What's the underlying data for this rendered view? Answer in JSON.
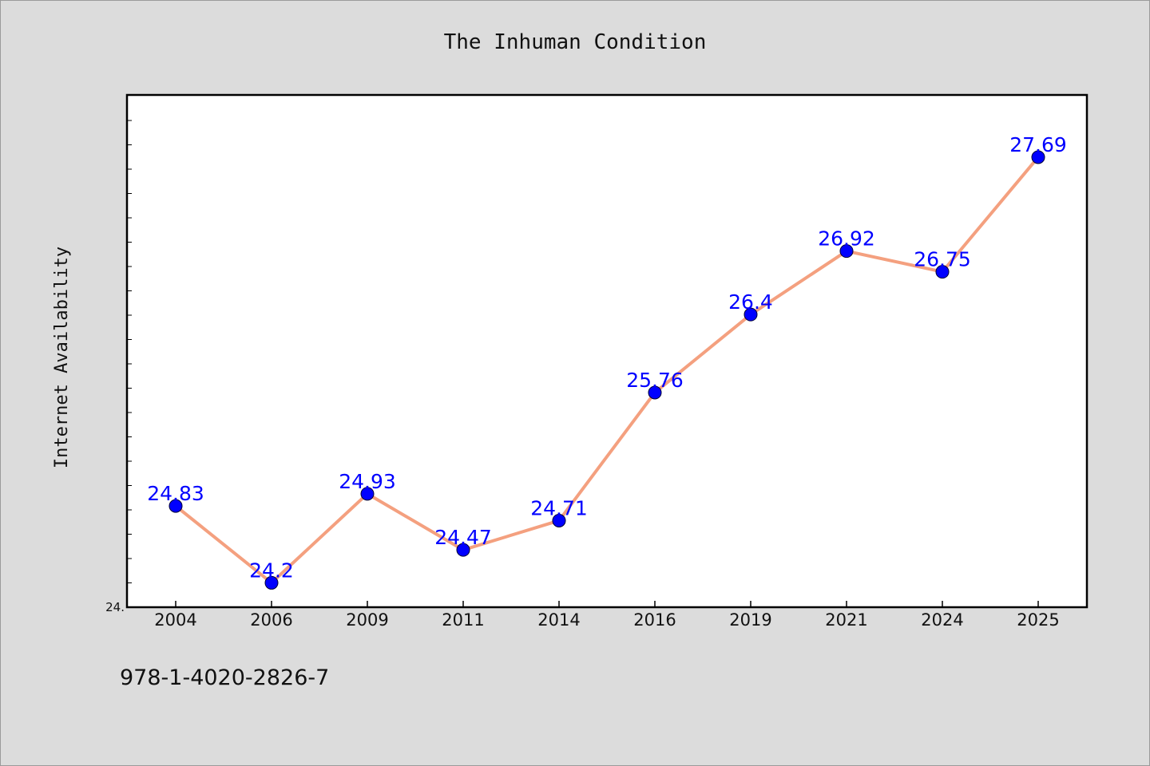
{
  "chart_data": {
    "type": "line",
    "title": "The Inhuman Condition",
    "xlabel": "",
    "ylabel": "Internet Availability",
    "categories": [
      "2004",
      "2006",
      "2009",
      "2011",
      "2014",
      "2016",
      "2019",
      "2021",
      "2024",
      "2025"
    ],
    "series": [
      {
        "values": [
          24.83,
          24.2,
          24.93,
          24.47,
          24.71,
          25.76,
          26.4,
          26.92,
          26.75,
          27.69
        ],
        "data_labels": [
          "24.83",
          "24.2",
          "24.93",
          "24.47",
          "24.71",
          "25.76",
          "26.4",
          "26.92",
          "26.75",
          "27.69"
        ]
      }
    ],
    "ylim": [
      24.0,
      28.2
    ],
    "ytick_labels": [
      "24."
    ],
    "grid": false,
    "colors": {
      "line": "#f4a07f",
      "marker": "#0000ff",
      "data_label": "#0000ff",
      "plot_background": "#ffffff",
      "page_background": "#dcdcdc"
    }
  },
  "footnote": "978-1-4020-2826-7"
}
